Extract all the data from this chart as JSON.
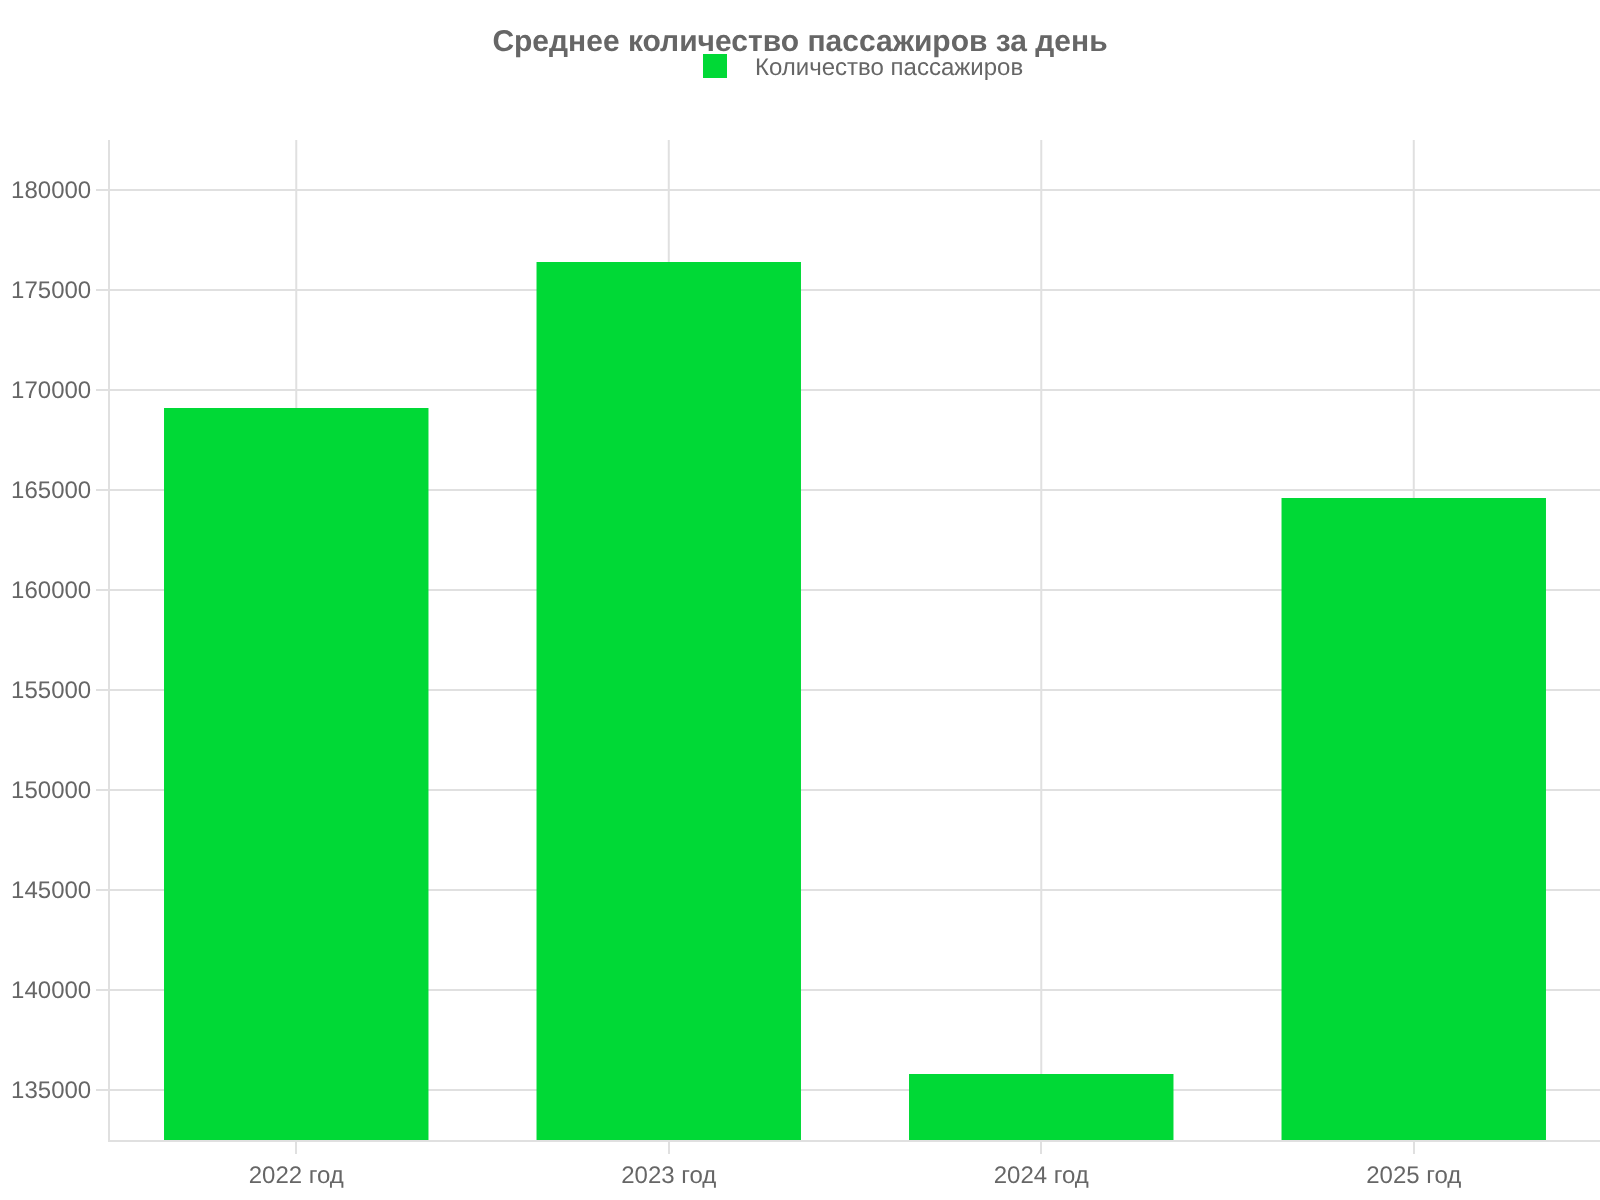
{
  "chart_data": {
    "type": "bar",
    "title": "Среднее количество пассажиров за день",
    "categories": [
      "2022 год",
      "2023 год",
      "2024 год",
      "2025 год"
    ],
    "series": [
      {
        "name": "Количество пассажиров",
        "color": "#00d936",
        "values": [
          169100,
          176400,
          135800,
          164600
        ]
      }
    ],
    "ylim": [
      132500,
      182500
    ],
    "yticks": [
      135000,
      140000,
      145000,
      150000,
      155000,
      160000,
      165000,
      170000,
      175000,
      180000
    ],
    "grid": true,
    "legend": "top"
  }
}
